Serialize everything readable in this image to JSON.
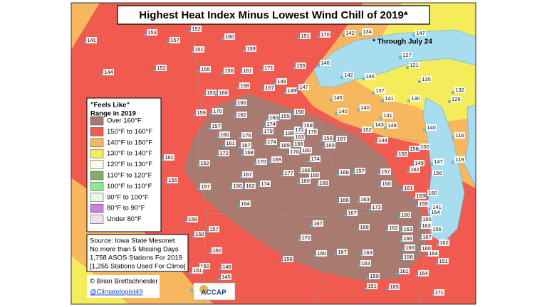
{
  "title": "Highest Heat Index Minus Lowest Wind Chill of 2019*",
  "footnote": "* Through July 24",
  "legend": {
    "title_lines": [
      "\"Feels Like\"",
      "Range in 2019"
    ],
    "items": [
      {
        "label": "Over 160°F",
        "color": "#a87a70"
      },
      {
        "label": "150°F to 160°F",
        "color": "#f15a4f"
      },
      {
        "label": "140°F to 150°F",
        "color": "#f7b75e"
      },
      {
        "label": "130°F to 140°F",
        "color": "#f4ec5a"
      },
      {
        "label": "120°F to 130°F",
        "color": "#fbfbe6"
      },
      {
        "label": "110°F to 120°F",
        "color": "#7fae6a"
      },
      {
        "label": "100°F to 110°F",
        "color": "#8ee88c"
      },
      {
        "label": "90°F to 100°F",
        "color": "#eaf7e6"
      },
      {
        "label": "80°F to 90°F",
        "color": "#c77fe0"
      },
      {
        "label": "Under 80°F",
        "color": "#f6dcf3"
      }
    ]
  },
  "source_lines": [
    "Source: Iowa State Mesonet",
    "No more than 5 Missing Days",
    "1,758 ASOS Stations For 2019",
    "[1,255 Stations Used For Climo]"
  ],
  "credit": "© Brian Brettschneider",
  "handle": "@Climatologist49",
  "logo": "ACCAP",
  "stations": [
    141,
    153,
    157,
    152,
    160,
    151,
    170,
    142,
    134,
    147,
    159,
    151,
    144,
    152,
    155,
    156,
    161,
    171,
    155,
    146,
    127,
    121,
    142,
    146,
    135,
    132,
    153,
    166,
    158,
    157,
    149,
    149,
    147,
    145,
    137,
    141,
    130,
    126,
    159,
    160,
    162,
    160,
    155,
    150,
    140,
    140,
    141,
    143,
    148,
    152,
    170,
    157,
    160,
    176,
    179,
    180,
    174,
    172,
    159,
    163,
    175,
    156,
    167,
    160,
    144,
    156,
    150,
    116,
    161,
    167,
    174,
    169,
    166,
    170,
    172,
    168,
    160,
    174,
    155,
    149,
    147,
    119,
    140,
    161,
    162,
    170,
    169,
    177,
    166,
    169,
    167,
    168,
    157,
    157,
    162,
    158,
    155,
    157,
    166,
    162,
    174,
    160,
    168,
    160,
    161,
    163,
    155,
    160,
    164,
    166,
    163,
    173,
    167,
    141,
    164,
    160,
    163,
    158,
    167,
    166,
    162,
    163,
    156,
    157,
    165,
    167,
    170,
    166,
    150,
    165,
    158,
    162,
    164,
    151,
    160,
    167,
    163,
    163,
    150,
    156,
    160,
    150,
    148,
    151,
    145,
    161,
    164,
    159,
    165,
    151,
    171,
    154
  ]
}
